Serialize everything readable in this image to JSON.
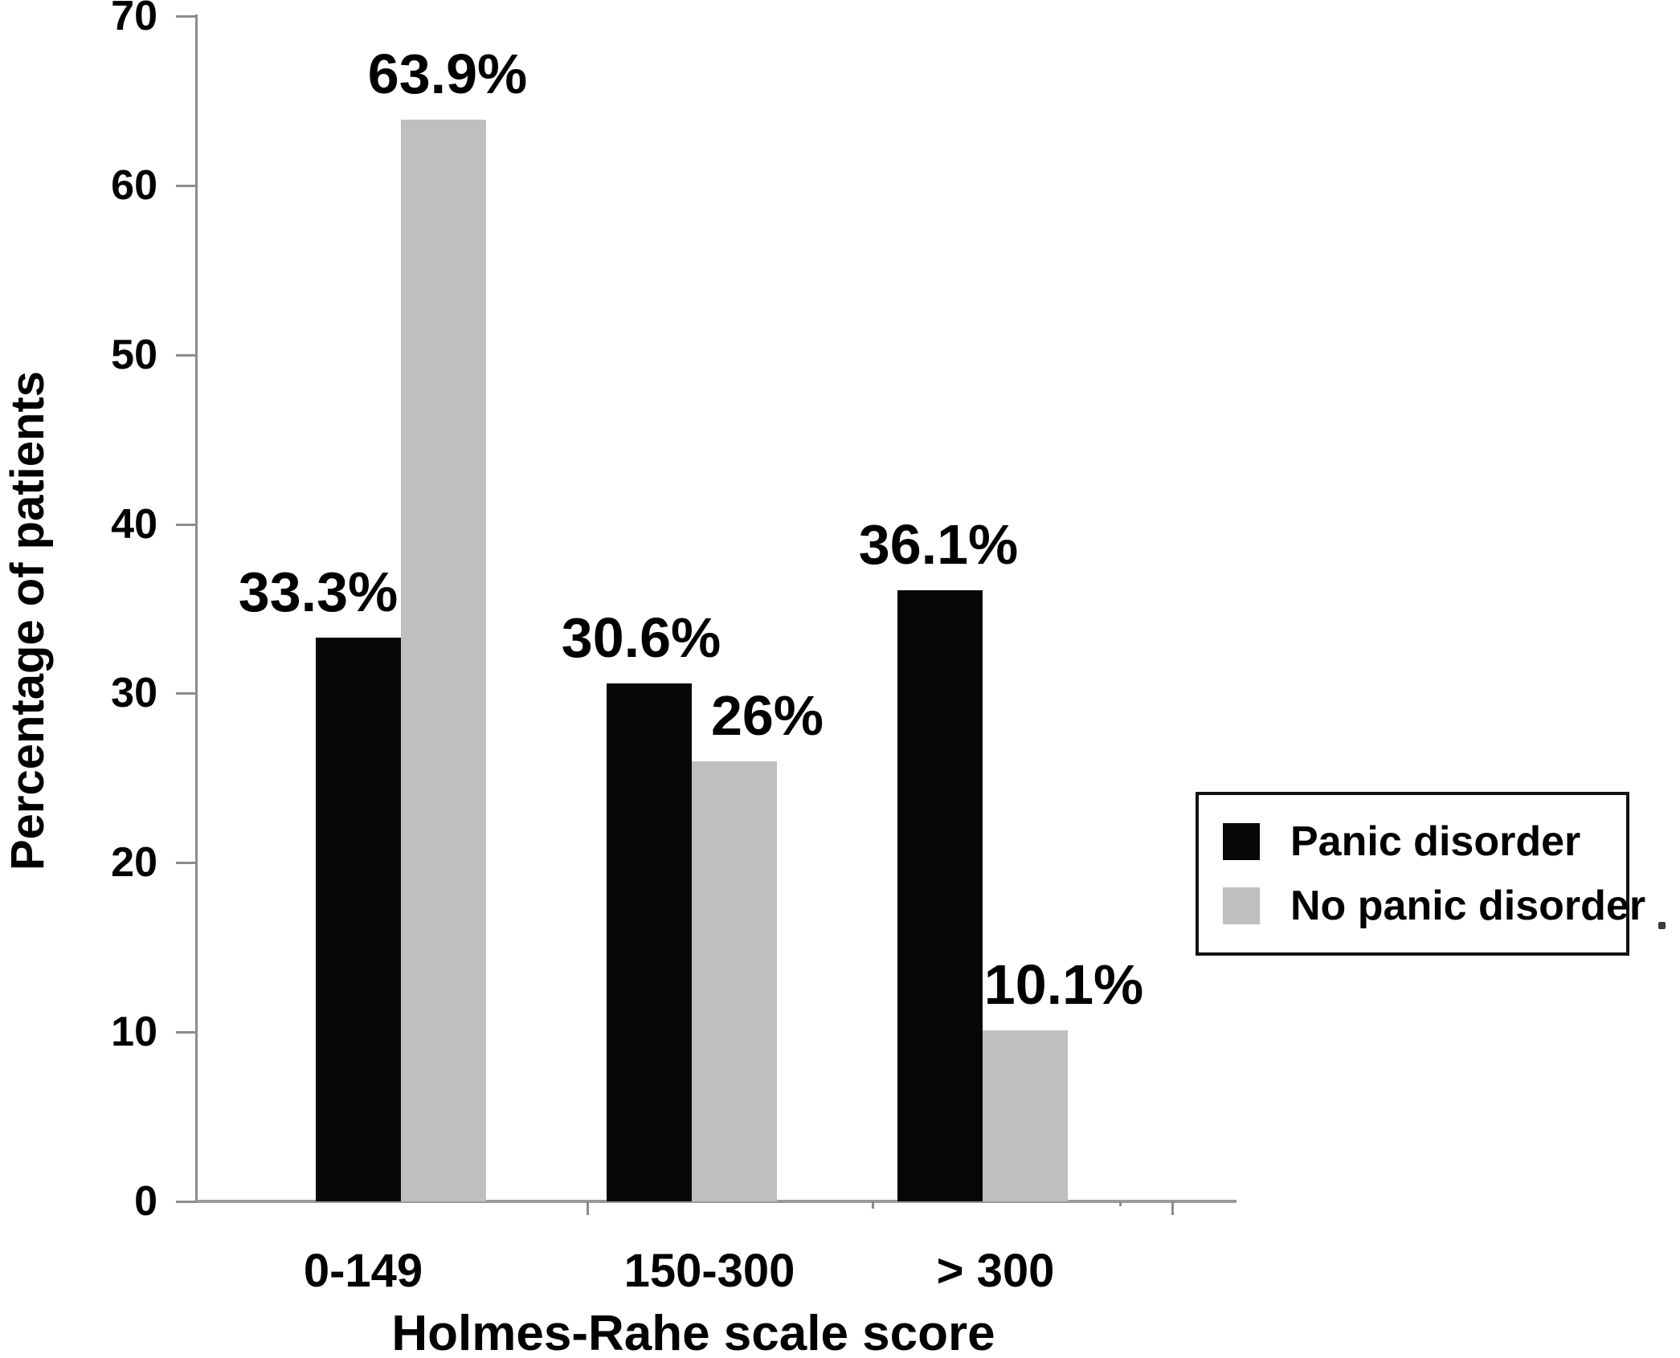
{
  "chart_data": {
    "type": "bar",
    "title": "",
    "categories": [
      "0-149",
      "150-300",
      "> 300"
    ],
    "series": [
      {
        "name": "Panic disorder",
        "color": "#070707",
        "values": [
          33.3,
          30.6,
          36.1
        ],
        "value_labels": [
          "33.3%",
          "30.6%",
          "36.1%"
        ]
      },
      {
        "name": "No panic disorder",
        "color": "#bfbfbf",
        "values": [
          63.9,
          26,
          10.1
        ],
        "value_labels": [
          "63.9%",
          "26%",
          "10.1%"
        ]
      }
    ],
    "xlabel": "Holmes-Rahe scale score",
    "ylabel": "Percentage of patients",
    "ylim": [
      0,
      70
    ],
    "yticks": [
      0,
      10,
      20,
      30,
      40,
      50,
      60,
      70
    ],
    "ytick_labels": [
      "0",
      "10",
      "20",
      "30",
      "40",
      "50",
      "60",
      "70"
    ],
    "grid": false,
    "legend_position": "middle-right",
    "axis_color": "#8c8c8c",
    "text_color": "#000000",
    "background": "#ffffff"
  }
}
